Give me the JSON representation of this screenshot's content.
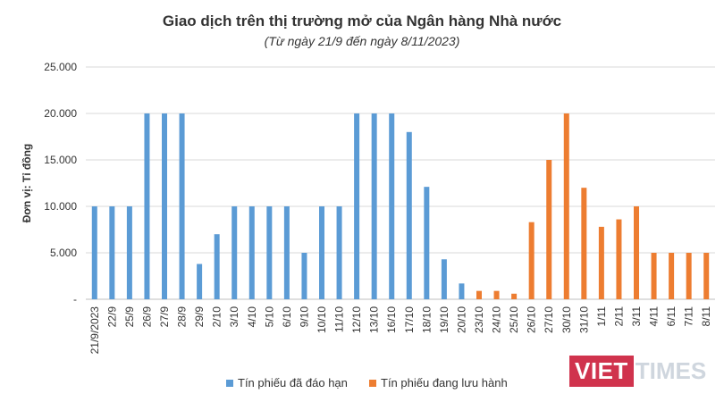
{
  "chart_data": {
    "type": "bar",
    "title": "Giao dịch trên thị trường mở của Ngân hàng Nhà nước",
    "subtitle": "(Từ ngày 21/9 đến ngày 8/11/2023)",
    "ylabel": "Đơn vị: Tỉ đồng",
    "xlabel": "",
    "ylim": [
      0,
      25000
    ],
    "yticks": [
      0,
      5000,
      10000,
      15000,
      20000,
      25000
    ],
    "ytick_labels": [
      "-",
      "5.000",
      "10.000",
      "15.000",
      "20.000",
      "25.000"
    ],
    "grid": true,
    "legend_position": "bottom",
    "categories": [
      "21/9/2023",
      "22/9",
      "25/9",
      "26/9",
      "27/9",
      "28/9",
      "29/9",
      "2/10",
      "3/10",
      "4/10",
      "5/10",
      "6/10",
      "9/10",
      "10/10",
      "11/10",
      "12/10",
      "13/10",
      "16/10",
      "17/10",
      "18/10",
      "19/10",
      "20/10",
      "23/10",
      "24/10",
      "25/10",
      "26/10",
      "27/10",
      "30/10",
      "31/10",
      "1/11",
      "2/11",
      "3/11",
      "4/11",
      "6/11",
      "7/11",
      "8/11"
    ],
    "series": [
      {
        "name": "Tín phiếu đã đáo hạn",
        "color": "#5b9bd5",
        "values": [
          10000,
          10000,
          10000,
          20000,
          20000,
          20000,
          3800,
          7000,
          10000,
          10000,
          10000,
          10000,
          5000,
          10000,
          10000,
          20000,
          20000,
          20000,
          18000,
          12100,
          4300,
          1700,
          null,
          null,
          null,
          null,
          null,
          null,
          null,
          null,
          null,
          null,
          null,
          null,
          null,
          null
        ]
      },
      {
        "name": "Tín phiếu đang lưu hành",
        "color": "#ed7d31",
        "values": [
          null,
          null,
          null,
          null,
          null,
          null,
          null,
          null,
          null,
          null,
          null,
          null,
          null,
          null,
          null,
          null,
          null,
          null,
          null,
          null,
          null,
          null,
          900,
          900,
          600,
          8300,
          15000,
          20000,
          12000,
          7800,
          8600,
          10000,
          5000,
          5000,
          5000,
          5000
        ]
      }
    ]
  },
  "watermark": {
    "part1": "VIET",
    "part2": "TIMES"
  }
}
